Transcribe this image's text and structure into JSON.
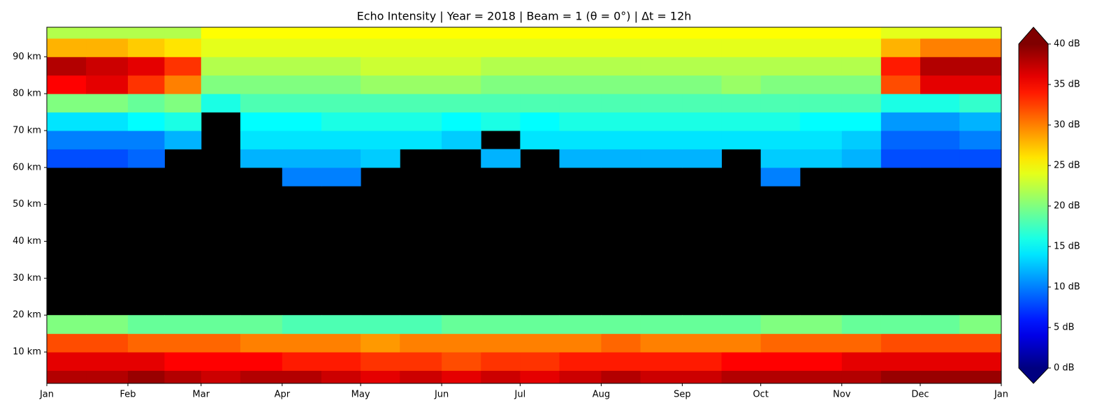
{
  "chart_data": {
    "type": "heatmap",
    "title": "Echo Intensity | Year = 2018 | Beam = 1 (θ = 0°) | Δt = 12h",
    "colormap": "jet",
    "x_edges": [
      0,
      15,
      31,
      45,
      59,
      74,
      90,
      105,
      120,
      135,
      151,
      166,
      181,
      196,
      212,
      227,
      243,
      258,
      273,
      288,
      304,
      319,
      334,
      349,
      365
    ],
    "y_edges": [
      1.5,
      5,
      10,
      15,
      20,
      30,
      40,
      50,
      55,
      60,
      65,
      70,
      75,
      80,
      85,
      90,
      95,
      98
    ],
    "values": [
      [
        38,
        38,
        39,
        38,
        37,
        38,
        38,
        37,
        36,
        37,
        36,
        37,
        36,
        37,
        38,
        37,
        37,
        38,
        38,
        38,
        38,
        39,
        39,
        39
      ],
      [
        36,
        36,
        36,
        35,
        35,
        35,
        34,
        34,
        33,
        33,
        32,
        33,
        33,
        34,
        34,
        34,
        34,
        35,
        35,
        35,
        36,
        36,
        36,
        36
      ],
      [
        32,
        32,
        31,
        31,
        31,
        30,
        30,
        30,
        29,
        30,
        30,
        30,
        30,
        30,
        31,
        30,
        30,
        30,
        31,
        31,
        31,
        32,
        32,
        32
      ],
      [
        20,
        20,
        19,
        19,
        19,
        19,
        18,
        18,
        18,
        18,
        19,
        19,
        19,
        19,
        19,
        19,
        19,
        19,
        20,
        20,
        19,
        19,
        19,
        20
      ],
      [
        null,
        null,
        null,
        null,
        null,
        null,
        null,
        null,
        null,
        null,
        null,
        null,
        null,
        null,
        null,
        null,
        null,
        null,
        null,
        null,
        null,
        null,
        null,
        null
      ],
      [
        null,
        null,
        null,
        null,
        null,
        null,
        null,
        null,
        null,
        null,
        null,
        null,
        null,
        null,
        null,
        null,
        null,
        null,
        null,
        null,
        null,
        null,
        null,
        null
      ],
      [
        null,
        null,
        null,
        null,
        null,
        null,
        null,
        null,
        null,
        null,
        null,
        null,
        null,
        null,
        null,
        null,
        null,
        null,
        null,
        null,
        null,
        null,
        null,
        null
      ],
      [
        null,
        null,
        null,
        null,
        null,
        null,
        null,
        null,
        null,
        null,
        null,
        null,
        null,
        null,
        null,
        null,
        null,
        null,
        null,
        null,
        null,
        null,
        null,
        null
      ],
      [
        null,
        null,
        null,
        null,
        null,
        null,
        10,
        10,
        null,
        null,
        null,
        null,
        null,
        null,
        null,
        null,
        null,
        null,
        10,
        null,
        null,
        null,
        null,
        null
      ],
      [
        8,
        8,
        9,
        null,
        null,
        12,
        12,
        12,
        13,
        null,
        null,
        12,
        null,
        12,
        12,
        12,
        12,
        null,
        13,
        13,
        12,
        8,
        8,
        8
      ],
      [
        10,
        10,
        10,
        12,
        null,
        14,
        14,
        14,
        14,
        14,
        13,
        null,
        14,
        14,
        14,
        14,
        14,
        14,
        14,
        14,
        13,
        9,
        9,
        10
      ],
      [
        14,
        14,
        15,
        16,
        null,
        15,
        15,
        16,
        16,
        16,
        15,
        16,
        15,
        16,
        16,
        16,
        16,
        16,
        16,
        15,
        15,
        11,
        11,
        12
      ],
      [
        20,
        20,
        19,
        20,
        16,
        18,
        18,
        18,
        18,
        18,
        18,
        18,
        18,
        18,
        18,
        18,
        18,
        18,
        18,
        18,
        18,
        16,
        16,
        17
      ],
      [
        35,
        36,
        33,
        30,
        20,
        20,
        20,
        20,
        21,
        21,
        21,
        20,
        20,
        20,
        20,
        20,
        20,
        21,
        20,
        20,
        20,
        32,
        36,
        36
      ],
      [
        38,
        37,
        36,
        33,
        22,
        22,
        22,
        22,
        23,
        23,
        23,
        22,
        22,
        22,
        22,
        22,
        22,
        22,
        22,
        22,
        22,
        34,
        38,
        38
      ],
      [
        28,
        28,
        27,
        26,
        24,
        24,
        24,
        24,
        24,
        24,
        24,
        24,
        24,
        24,
        24,
        24,
        24,
        24,
        24,
        24,
        24,
        28,
        30,
        30
      ],
      [
        22,
        22,
        22,
        22,
        25,
        25,
        25,
        25,
        25,
        25,
        25,
        25,
        25,
        25,
        25,
        25,
        25,
        25,
        25,
        25,
        25,
        24,
        24,
        24
      ]
    ],
    "xlim": [
      0,
      365
    ],
    "xticks": [
      {
        "value": 0,
        "label": "Jan"
      },
      {
        "value": 31,
        "label": "Feb"
      },
      {
        "value": 59,
        "label": "Mar"
      },
      {
        "value": 90,
        "label": "Apr"
      },
      {
        "value": 120,
        "label": "May"
      },
      {
        "value": 151,
        "label": "Jun"
      },
      {
        "value": 181,
        "label": "Jul"
      },
      {
        "value": 212,
        "label": "Aug"
      },
      {
        "value": 243,
        "label": "Sep"
      },
      {
        "value": 273,
        "label": "Oct"
      },
      {
        "value": 304,
        "label": "Nov"
      },
      {
        "value": 334,
        "label": "Dec"
      },
      {
        "value": 365,
        "label": "Jan"
      }
    ],
    "ylim": [
      1.5,
      98
    ],
    "yticks": [
      {
        "value": 10,
        "label": "10 km"
      },
      {
        "value": 20,
        "label": "20 km"
      },
      {
        "value": 30,
        "label": "30 km"
      },
      {
        "value": 40,
        "label": "40 km"
      },
      {
        "value": 50,
        "label": "50 km"
      },
      {
        "value": 60,
        "label": "60 km"
      },
      {
        "value": 70,
        "label": "70 km"
      },
      {
        "value": 80,
        "label": "80 km"
      },
      {
        "value": 90,
        "label": "90 km"
      }
    ],
    "zlim": [
      0,
      40
    ],
    "zticks": [
      {
        "value": 0,
        "label": "0 dB"
      },
      {
        "value": 5,
        "label": "5 dB"
      },
      {
        "value": 10,
        "label": "10 dB"
      },
      {
        "value": 15,
        "label": "15 dB"
      },
      {
        "value": 20,
        "label": "20 dB"
      },
      {
        "value": 25,
        "label": "25 dB"
      },
      {
        "value": 30,
        "label": "30 dB"
      },
      {
        "value": 35,
        "label": "35 dB"
      },
      {
        "value": 40,
        "label": "40 dB"
      }
    ]
  }
}
